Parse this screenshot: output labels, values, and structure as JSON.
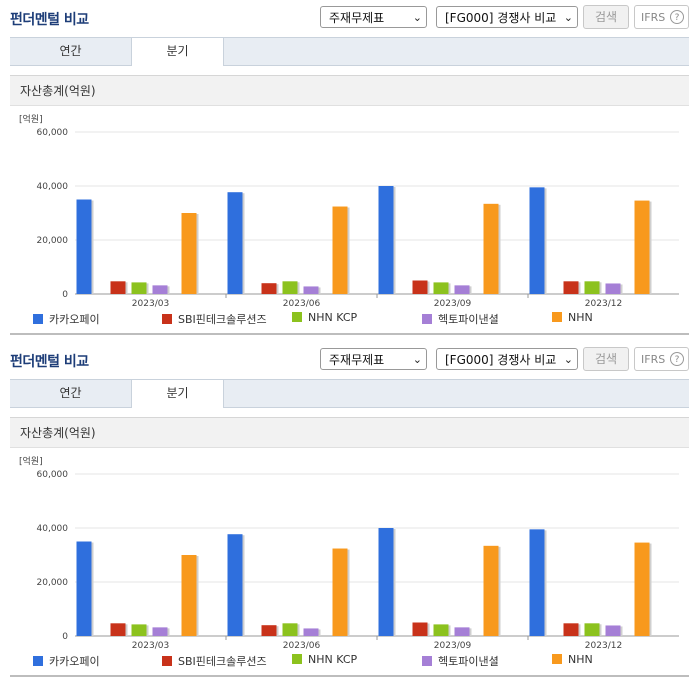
{
  "title": "펀더멘털 비교",
  "statement_select": "주재무제표",
  "peer_select": "[FG000] 경쟁사 비교",
  "search_label": "검색",
  "ifrs_label": "IFRS",
  "help_glyph": "?",
  "tabs": [
    "연간",
    "분기"
  ],
  "active_tab": "분기",
  "chart_title": "자산총계(억원)",
  "unit_label": "[억원]",
  "legend": [
    "카카오페이",
    "SBI핀테크솔루션즈",
    "NHN KCP",
    "헥토파이낸셜",
    "NHN"
  ],
  "colors": {
    "카카오페이": "#2f6fdd",
    "SBI핀테크솔루션즈": "#c8321a",
    "NHN KCP": "#8cc21e",
    "헥토파이낸셜": "#a57fd6",
    "NHN": "#f8991d",
    "title": "#1d3d78"
  },
  "chart_data": {
    "type": "bar",
    "title": "자산총계(억원)",
    "ylabel": "[억원]",
    "categories": [
      "2023/03",
      "2023/06",
      "2023/09",
      "2023/12"
    ],
    "series": [
      {
        "name": "카카오페이",
        "values": [
          35000,
          37700,
          40000,
          39500
        ]
      },
      {
        "name": "SBI핀테크솔루션즈",
        "values": [
          4700,
          4000,
          5000,
          4700
        ]
      },
      {
        "name": "NHN KCP",
        "values": [
          4300,
          4700,
          4300,
          4700
        ]
      },
      {
        "name": "헥토파이낸셜",
        "values": [
          3200,
          2800,
          3200,
          3900
        ]
      },
      {
        "name": "NHN",
        "values": [
          30000,
          32400,
          33400,
          34600
        ]
      }
    ],
    "ylim": [
      0,
      60000
    ],
    "yticks": [
      "0",
      "20,000",
      "40,000",
      "60,000"
    ],
    "grid": true,
    "legend_position": "bottom"
  }
}
